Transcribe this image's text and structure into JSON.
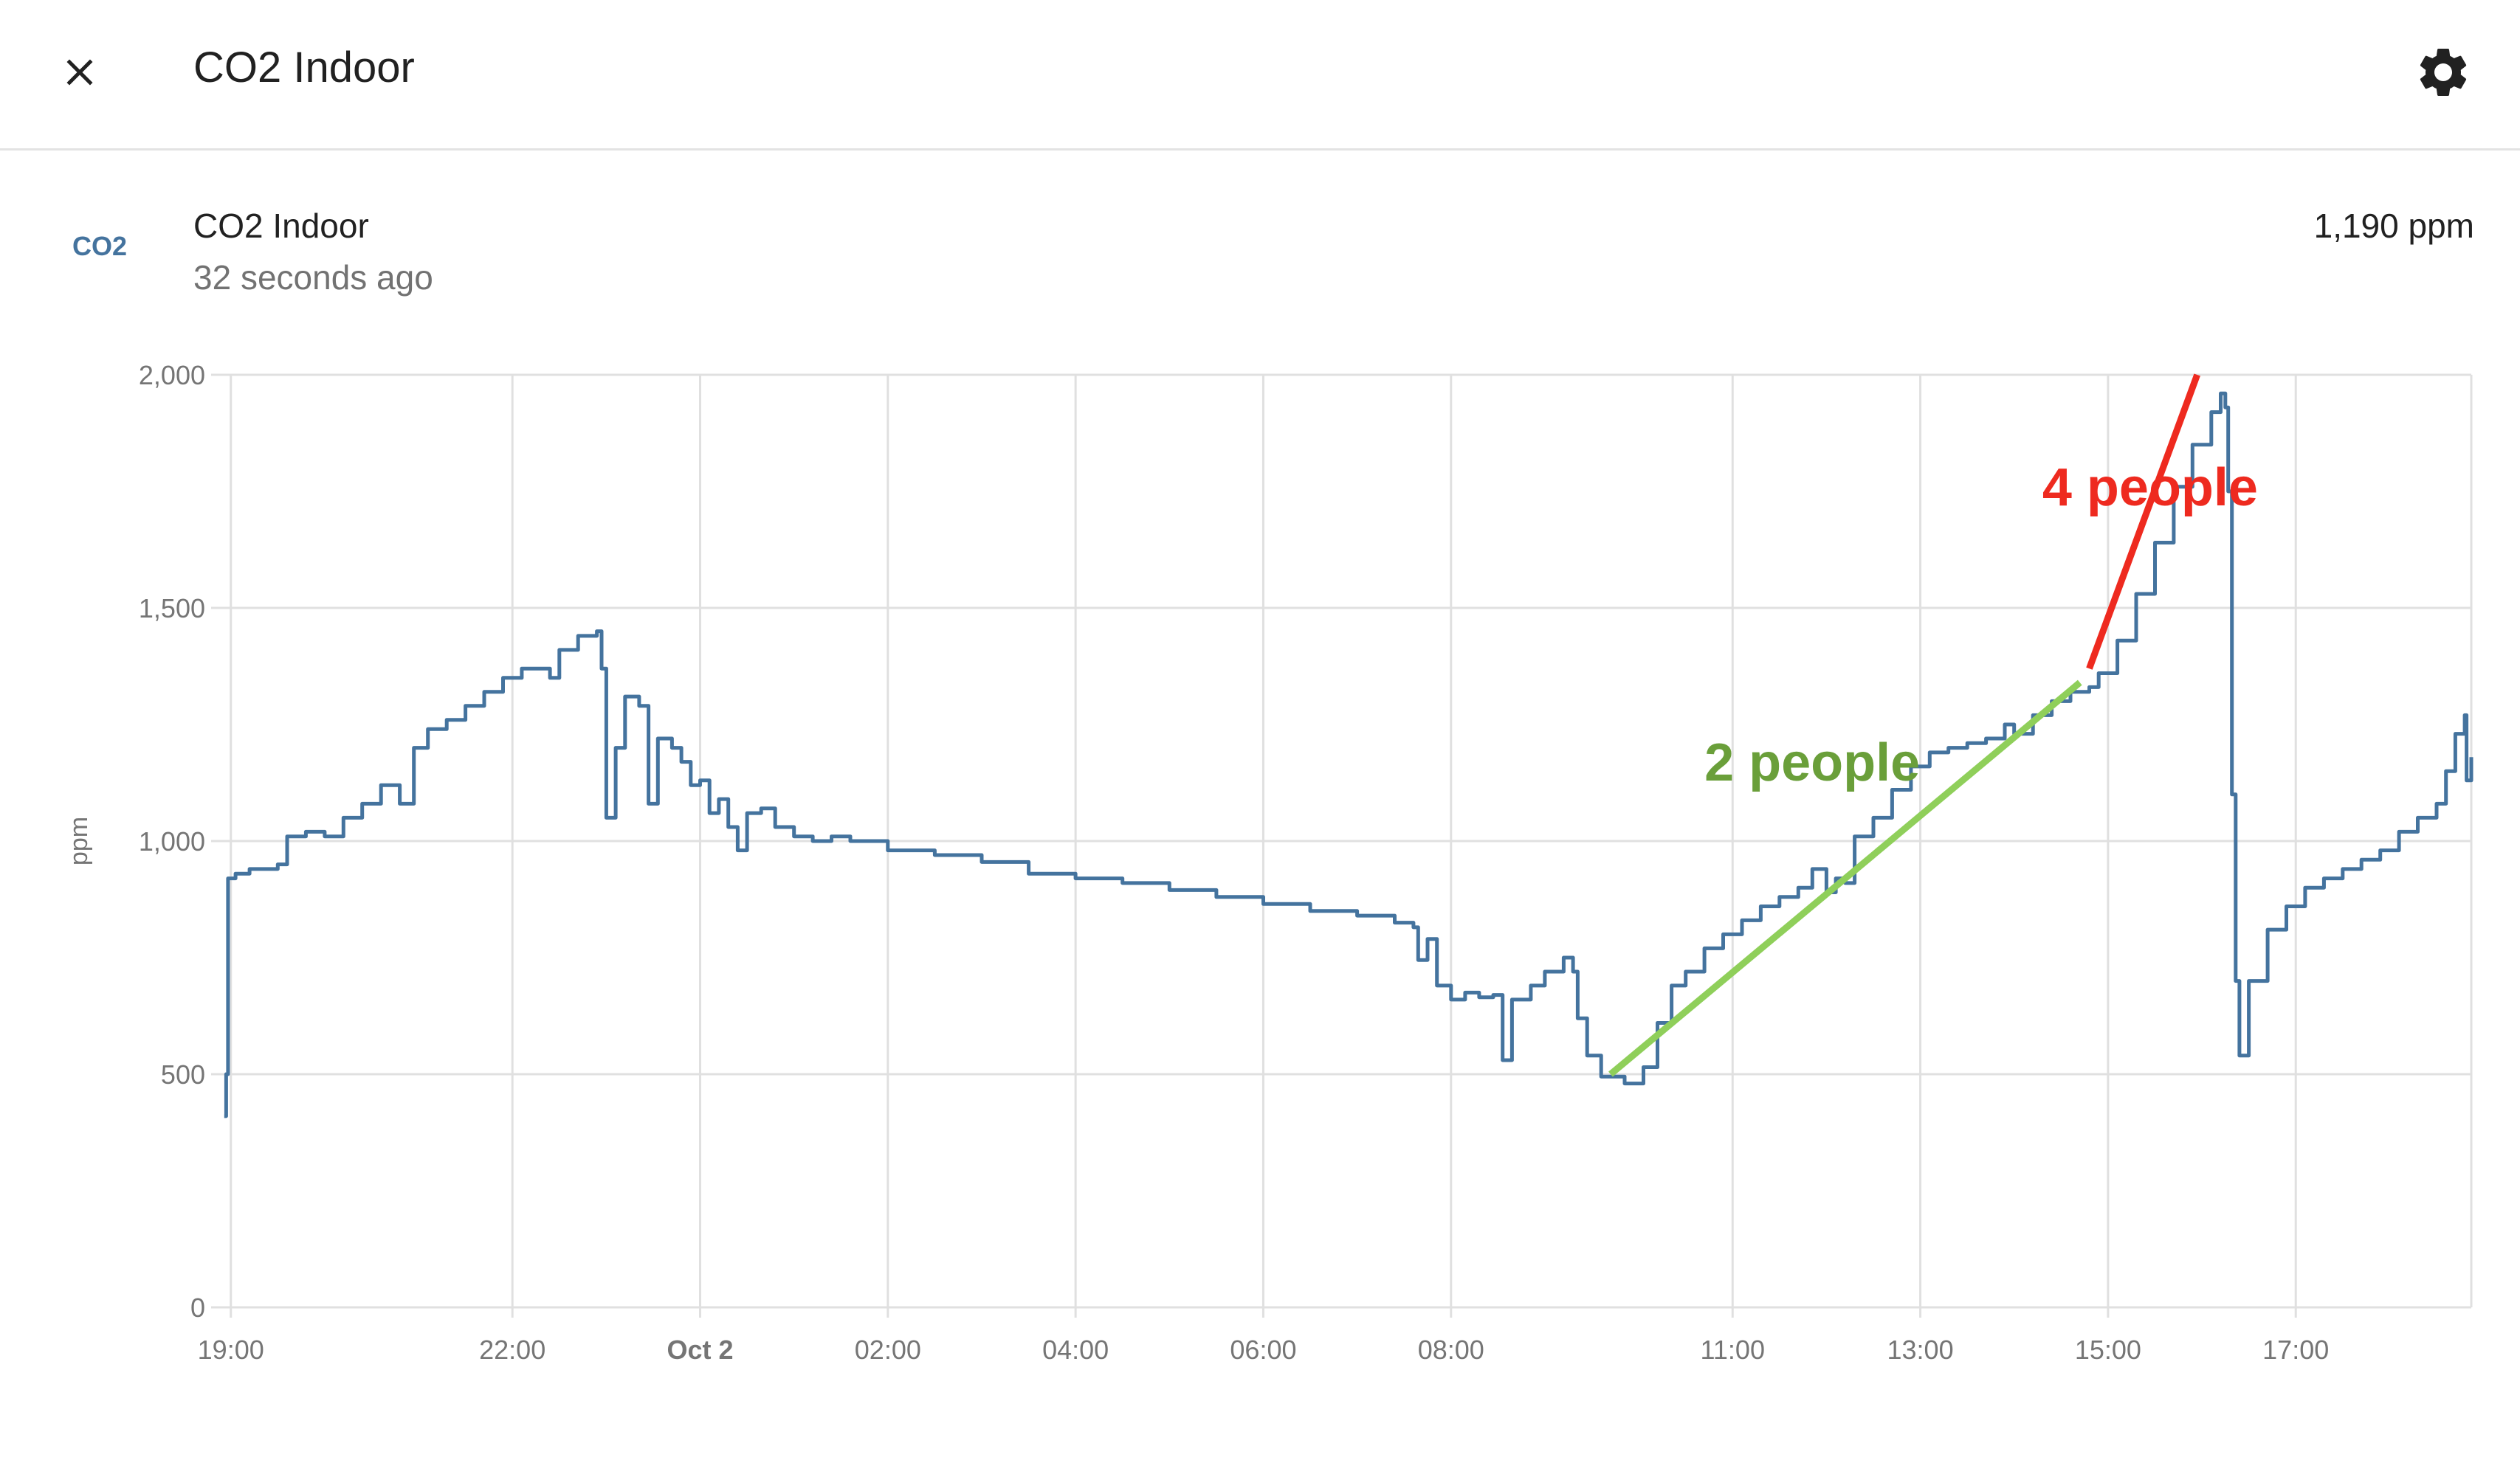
{
  "header": {
    "title": "CO2 Indoor",
    "close_icon": "close-icon",
    "settings_icon": "gear-icon"
  },
  "entity": {
    "name": "CO2 Indoor",
    "last_changed": "32 seconds ago",
    "state": "1,190 ppm",
    "icon": "molecule-co2-icon",
    "icon_label": "CO2",
    "icon_color": "#44739e"
  },
  "colors": {
    "series": "#44739e",
    "annotation_green": "#8fcf5a",
    "annotation_green_text": "#6a9f3a",
    "annotation_red": "#ee2a1f",
    "grid": "#e0e0e0",
    "axis_text": "#757575"
  },
  "chart_data": {
    "type": "line",
    "title": "",
    "xlabel": "",
    "ylabel": "ppm",
    "ylim": [
      0,
      2000
    ],
    "xlim": [
      18.9,
      42.87
    ],
    "yticks": [
      {
        "value": 0,
        "label": "0"
      },
      {
        "value": 500,
        "label": "500"
      },
      {
        "value": 1000,
        "label": "1,000"
      },
      {
        "value": 1500,
        "label": "1,500"
      },
      {
        "value": 2000,
        "label": "2,000"
      }
    ],
    "xticks": [
      {
        "value": 19,
        "label": "19:00",
        "bold": false
      },
      {
        "value": 22,
        "label": "22:00",
        "bold": false
      },
      {
        "value": 24,
        "label": "Oct 2",
        "bold": true
      },
      {
        "value": 26,
        "label": "02:00",
        "bold": false
      },
      {
        "value": 28,
        "label": "04:00",
        "bold": false
      },
      {
        "value": 30,
        "label": "06:00",
        "bold": false
      },
      {
        "value": 32,
        "label": "08:00",
        "bold": false
      },
      {
        "value": 35,
        "label": "11:00",
        "bold": false
      },
      {
        "value": 37,
        "label": "13:00",
        "bold": false
      },
      {
        "value": 39,
        "label": "15:00",
        "bold": false
      },
      {
        "value": 41,
        "label": "17:00",
        "bold": false
      }
    ],
    "series": [
      {
        "name": "CO2 Indoor",
        "points": [
          [
            18.93,
            410
          ],
          [
            18.95,
            500
          ],
          [
            18.97,
            920
          ],
          [
            19.05,
            930
          ],
          [
            19.2,
            940
          ],
          [
            19.5,
            950
          ],
          [
            19.6,
            1010
          ],
          [
            19.8,
            1020
          ],
          [
            20.0,
            1010
          ],
          [
            20.2,
            1050
          ],
          [
            20.4,
            1080
          ],
          [
            20.6,
            1120
          ],
          [
            20.8,
            1080
          ],
          [
            20.95,
            1200
          ],
          [
            21.1,
            1240
          ],
          [
            21.3,
            1260
          ],
          [
            21.5,
            1290
          ],
          [
            21.7,
            1320
          ],
          [
            21.9,
            1350
          ],
          [
            22.1,
            1370
          ],
          [
            22.3,
            1370
          ],
          [
            22.4,
            1350
          ],
          [
            22.5,
            1410
          ],
          [
            22.7,
            1440
          ],
          [
            22.9,
            1450
          ],
          [
            22.95,
            1370
          ],
          [
            23.0,
            1050
          ],
          [
            23.1,
            1200
          ],
          [
            23.2,
            1310
          ],
          [
            23.35,
            1290
          ],
          [
            23.45,
            1080
          ],
          [
            23.55,
            1220
          ],
          [
            23.7,
            1200
          ],
          [
            23.8,
            1170
          ],
          [
            23.9,
            1120
          ],
          [
            24.0,
            1130
          ],
          [
            24.1,
            1060
          ],
          [
            24.2,
            1090
          ],
          [
            24.3,
            1030
          ],
          [
            24.4,
            980
          ],
          [
            24.5,
            1060
          ],
          [
            24.65,
            1070
          ],
          [
            24.8,
            1030
          ],
          [
            25.0,
            1010
          ],
          [
            25.2,
            1000
          ],
          [
            25.4,
            1010
          ],
          [
            25.6,
            1000
          ],
          [
            26.0,
            980
          ],
          [
            26.5,
            970
          ],
          [
            27.0,
            955
          ],
          [
            27.5,
            930
          ],
          [
            28.0,
            920
          ],
          [
            28.5,
            910
          ],
          [
            29.0,
            895
          ],
          [
            29.5,
            880
          ],
          [
            30.0,
            865
          ],
          [
            30.5,
            850
          ],
          [
            31.0,
            840
          ],
          [
            31.4,
            825
          ],
          [
            31.6,
            815
          ],
          [
            31.65,
            745
          ],
          [
            31.75,
            790
          ],
          [
            31.85,
            690
          ],
          [
            32.0,
            660
          ],
          [
            32.15,
            675
          ],
          [
            32.3,
            665
          ],
          [
            32.45,
            670
          ],
          [
            32.55,
            530
          ],
          [
            32.65,
            660
          ],
          [
            32.85,
            690
          ],
          [
            33.0,
            720
          ],
          [
            33.2,
            750
          ],
          [
            33.3,
            720
          ],
          [
            33.35,
            620
          ],
          [
            33.45,
            540
          ],
          [
            33.6,
            495
          ],
          [
            33.85,
            480
          ],
          [
            33.95,
            480
          ],
          [
            34.05,
            515
          ],
          [
            34.2,
            610
          ],
          [
            34.35,
            690
          ],
          [
            34.5,
            720
          ],
          [
            34.7,
            770
          ],
          [
            34.9,
            800
          ],
          [
            35.1,
            830
          ],
          [
            35.3,
            860
          ],
          [
            35.5,
            880
          ],
          [
            35.7,
            900
          ],
          [
            35.85,
            940
          ],
          [
            36.0,
            890
          ],
          [
            36.1,
            920
          ],
          [
            36.2,
            910
          ],
          [
            36.3,
            1010
          ],
          [
            36.5,
            1050
          ],
          [
            36.7,
            1110
          ],
          [
            36.9,
            1160
          ],
          [
            37.1,
            1190
          ],
          [
            37.3,
            1200
          ],
          [
            37.5,
            1210
          ],
          [
            37.7,
            1220
          ],
          [
            37.9,
            1250
          ],
          [
            38.0,
            1230
          ],
          [
            38.2,
            1270
          ],
          [
            38.4,
            1300
          ],
          [
            38.6,
            1320
          ],
          [
            38.8,
            1330
          ],
          [
            38.9,
            1360
          ],
          [
            39.1,
            1430
          ],
          [
            39.3,
            1530
          ],
          [
            39.5,
            1640
          ],
          [
            39.7,
            1760
          ],
          [
            39.9,
            1850
          ],
          [
            40.1,
            1920
          ],
          [
            40.2,
            1960
          ],
          [
            40.25,
            1930
          ],
          [
            40.28,
            1750
          ],
          [
            40.32,
            1100
          ],
          [
            40.36,
            700
          ],
          [
            40.4,
            540
          ],
          [
            40.5,
            700
          ],
          [
            40.7,
            810
          ],
          [
            40.9,
            860
          ],
          [
            41.1,
            900
          ],
          [
            41.3,
            920
          ],
          [
            41.5,
            940
          ],
          [
            41.7,
            960
          ],
          [
            41.9,
            980
          ],
          [
            42.1,
            1020
          ],
          [
            42.3,
            1050
          ],
          [
            42.5,
            1080
          ],
          [
            42.6,
            1150
          ],
          [
            42.7,
            1230
          ],
          [
            42.8,
            1270
          ],
          [
            42.82,
            1130
          ],
          [
            42.87,
            1180
          ]
        ]
      }
    ],
    "annotations": [
      {
        "label": "2 people",
        "color": "#8fcf5a",
        "text_color": "#6a9f3a",
        "start": [
          33.7,
          500
        ],
        "end": [
          38.7,
          1340
        ],
        "label_at": [
          34.7,
          1130
        ]
      },
      {
        "label": "4 people",
        "color": "#ee2a1f",
        "text_color": "#ee2a1f",
        "start": [
          38.8,
          1370
        ],
        "end": [
          39.95,
          2000
        ],
        "label_at": [
          38.3,
          1720
        ]
      }
    ]
  }
}
